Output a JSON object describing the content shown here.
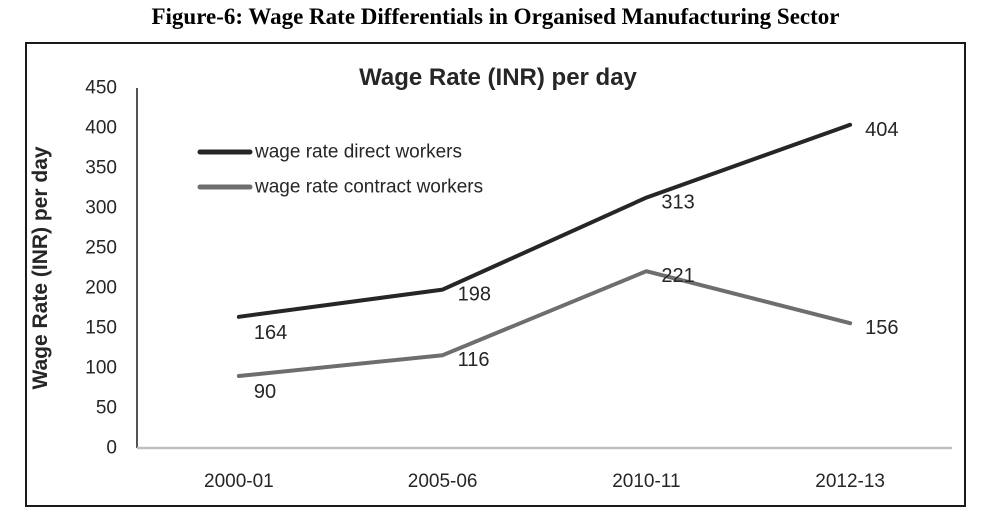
{
  "figure": {
    "caption": "Figure-6: Wage Rate Differentials in Organised Manufacturing Sector"
  },
  "chart_data": {
    "type": "line",
    "title": "Wage Rate (INR) per day",
    "ylabel": "Wage Rate (INR) per day",
    "xlabel": "",
    "categories": [
      "2000-01",
      "2005-06",
      "2010-11",
      "2012-13"
    ],
    "series": [
      {
        "name": "wage rate direct workers",
        "values": [
          164,
          198,
          313,
          404
        ],
        "color": "#262626"
      },
      {
        "name": "wage rate contract workers",
        "values": [
          90,
          116,
          221,
          156
        ],
        "color": "#6e6e6e"
      }
    ],
    "ylim": [
      0,
      450
    ],
    "ytick_step": 50,
    "grid": false,
    "legend_position": "top-left-inside",
    "data_labels": true
  },
  "colors": {
    "axis_vertical": "#404040",
    "axis_horizontal": "#bfbfbf",
    "text": "#262626",
    "frame_border": "#1a1a1a"
  }
}
